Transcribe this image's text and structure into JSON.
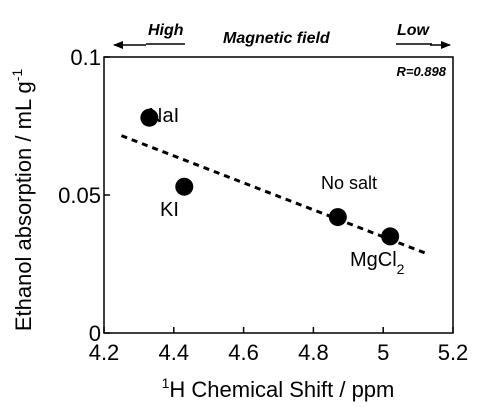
{
  "chart_data": {
    "type": "scatter",
    "title": "",
    "xlabel_sup": "1",
    "xlabel": "H Chemical Shift / ppm",
    "ylabel": "Ethanol absorption / mL g",
    "ylabel_sup": "-1",
    "xlim": [
      4.2,
      5.2
    ],
    "ylim": [
      0,
      0.1
    ],
    "xticks": [
      "4.2",
      "4.4",
      "4.6",
      "4.8",
      "5",
      "5.2"
    ],
    "yticks": [
      "0",
      "0.05",
      "0.1"
    ],
    "xtick_values": [
      4.2,
      4.4,
      4.6,
      4.8,
      5.0,
      5.2
    ],
    "ytick_values": [
      0,
      0.05,
      0.1
    ],
    "grid": false,
    "points": [
      {
        "x": 4.33,
        "y": 0.078,
        "label": "NaI"
      },
      {
        "x": 4.43,
        "y": 0.053,
        "label": "KI"
      },
      {
        "x": 4.87,
        "y": 0.042,
        "label": "No salt"
      },
      {
        "x": 5.02,
        "y": 0.035,
        "label": "MgCl",
        "label_sub": "2"
      }
    ],
    "fit_line": {
      "style": "dashed",
      "x": [
        4.25,
        5.13
      ],
      "y": [
        0.0715,
        0.0285
      ]
    },
    "annotations": {
      "high": "High",
      "low": "Low",
      "field": "Magnetic field",
      "r_value": "R=0.898"
    }
  }
}
